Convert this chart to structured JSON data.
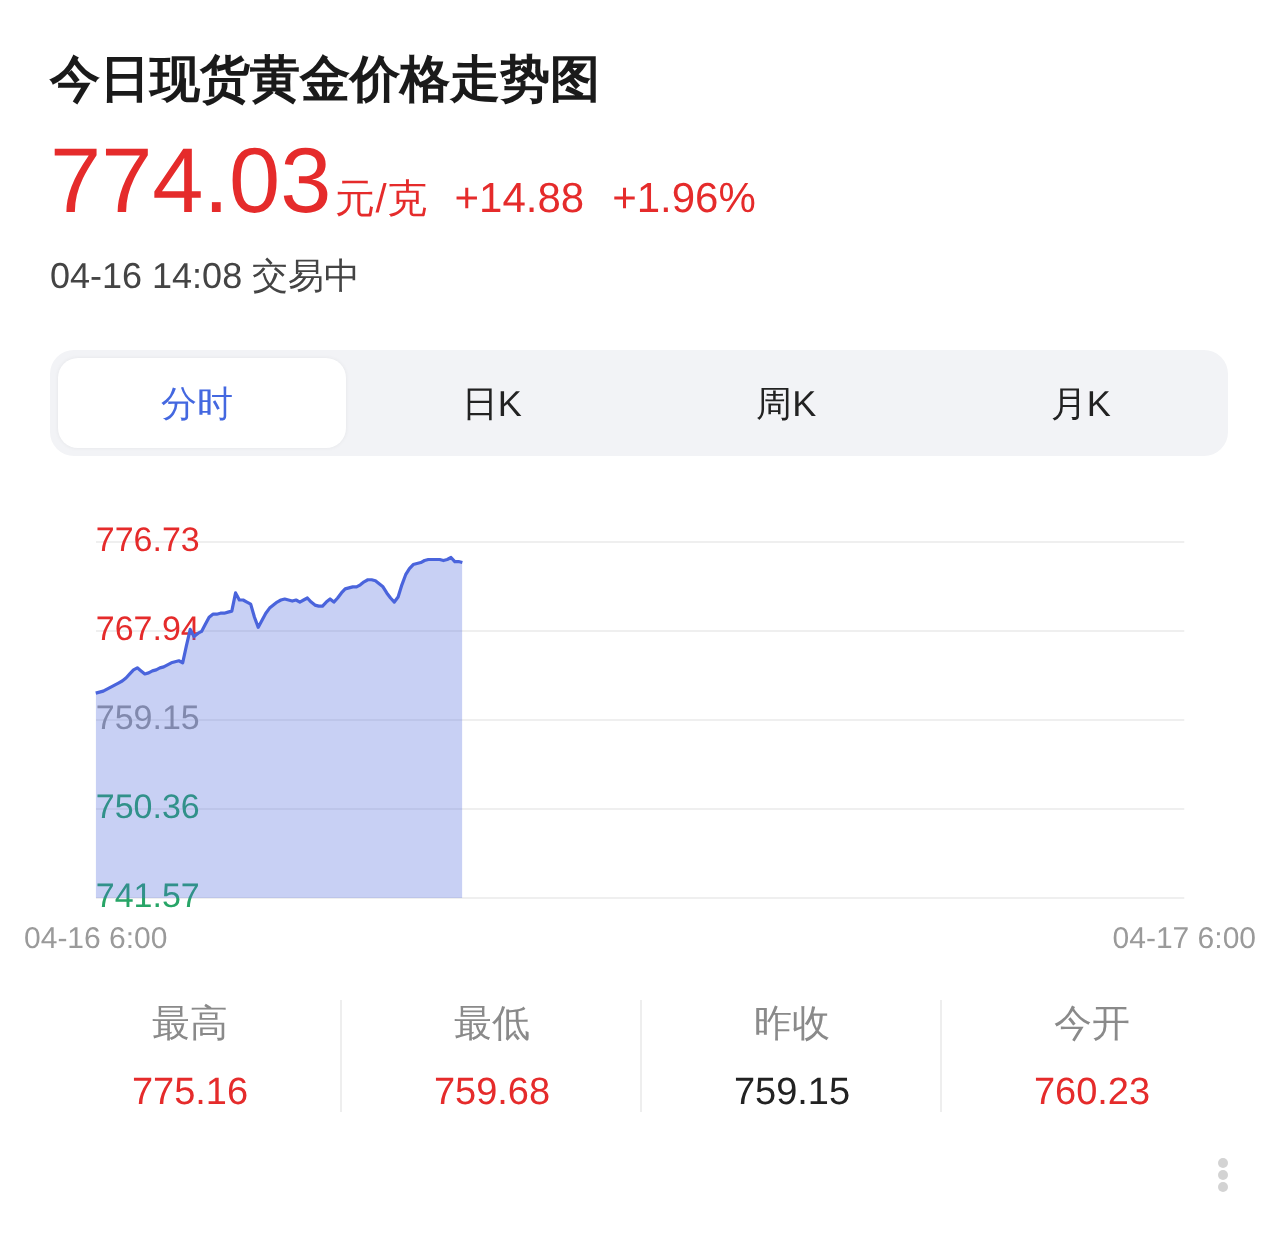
{
  "chart_data": {
    "type": "area",
    "title": "今日现货黄金价格走势图",
    "subtitle": "774.03元/克 +14.88 +1.96%",
    "annotations": [
      "04-16 14:08 交易中",
      "分时",
      "日K",
      "周K",
      "月K",
      "最高",
      "775.16",
      "最低",
      "759.68",
      "昨收",
      "759.15",
      "今开",
      "760.23"
    ],
    "categories": [
      "04-16 6:00",
      null,
      null,
      null,
      null,
      null,
      null,
      null,
      null,
      null,
      null,
      null,
      null,
      null,
      null,
      null,
      null,
      null,
      null,
      null,
      null,
      null,
      null,
      null,
      null,
      null,
      null,
      null,
      null,
      null,
      null,
      null,
      null,
      null,
      null,
      null,
      null,
      null,
      null,
      null,
      null,
      null,
      null,
      null,
      null,
      null,
      null,
      null,
      null,
      null,
      null,
      null,
      null,
      null,
      null,
      null,
      null,
      null,
      null,
      null,
      null,
      null,
      null,
      null,
      null,
      null,
      null,
      null,
      null,
      null,
      null,
      null,
      null,
      null,
      null,
      null,
      null,
      null,
      null,
      null,
      null,
      null,
      null,
      null,
      null,
      null,
      null,
      null,
      null,
      null,
      null,
      null,
      null,
      null,
      null,
      null,
      null,
      null,
      null,
      null,
      null,
      null,
      null,
      null,
      null,
      null,
      null,
      null,
      null,
      null,
      null,
      null,
      null,
      null,
      null,
      null,
      null,
      null,
      null,
      null,
      null,
      null,
      null,
      null,
      null,
      null,
      null,
      null,
      null,
      null,
      null,
      null,
      null,
      null,
      null,
      null,
      null,
      null,
      null,
      null,
      null,
      null,
      null,
      null,
      null,
      null,
      null,
      null,
      null,
      null,
      null,
      null,
      null,
      null,
      null,
      null,
      null,
      null,
      null,
      null,
      null,
      null,
      null,
      null,
      null,
      null,
      null,
      null,
      null,
      null,
      null,
      null,
      null,
      null,
      null,
      null,
      null,
      null,
      null,
      null,
      null,
      null,
      null,
      null,
      null,
      null,
      null,
      null,
      null,
      null,
      null,
      null,
      null,
      null,
      null,
      null,
      null,
      null,
      null,
      null,
      null,
      null,
      null,
      null,
      null,
      null,
      null,
      null,
      null,
      null,
      null,
      null,
      null,
      null,
      null,
      null,
      null,
      null,
      null,
      null,
      null,
      null,
      null,
      null,
      null,
      null,
      null,
      null,
      null,
      null,
      null,
      null,
      null,
      null,
      null,
      null,
      null,
      null,
      null,
      null,
      null,
      null,
      null,
      null,
      null,
      null,
      null,
      null,
      null,
      null,
      null,
      null,
      null,
      null,
      null,
      null,
      null,
      null,
      null,
      null,
      null,
      null,
      null,
      null,
      null,
      null,
      null,
      null,
      null,
      null,
      null,
      null,
      null,
      null,
      null,
      null,
      null,
      null,
      null,
      null,
      null,
      null,
      null,
      null,
      null,
      null,
      null,
      null,
      "04-17 6:00"
    ],
    "series": [
      {
        "color": "#4a64dc",
        "values": [
          761.8,
          761.9,
          762.0,
          762.2,
          762.4,
          762.6,
          762.8,
          763.0,
          763.3,
          763.7,
          764.1,
          764.3,
          764.0,
          763.7,
          763.8,
          764.0,
          764.1,
          764.3,
          764.4,
          764.6,
          764.8,
          764.9,
          765.0,
          764.8,
          766.5,
          768.1,
          767.4,
          767.7,
          767.9,
          768.6,
          769.3,
          769.6,
          769.6,
          769.7,
          769.7,
          769.8,
          769.9,
          771.7,
          771.0,
          771.0,
          770.8,
          770.6,
          769.3,
          768.3,
          769.0,
          769.7,
          770.2,
          770.5,
          770.8,
          771.0,
          771.1,
          771.0,
          770.9,
          771.0,
          770.8,
          771.0,
          771.2,
          770.8,
          770.5,
          770.4,
          770.4,
          770.8,
          771.1,
          770.8,
          771.2,
          771.7,
          772.1,
          772.2,
          772.3,
          772.3,
          772.5,
          772.8,
          773.0,
          773.0,
          772.9,
          772.6,
          772.3,
          771.7,
          771.2,
          770.8,
          771.3,
          772.5,
          773.5,
          774.1,
          774.5,
          774.6,
          774.7,
          774.9,
          775.0,
          775.0,
          775.0,
          775.0,
          774.9,
          775.0,
          775.2,
          774.8,
          774.8,
          774.7,
          null,
          null,
          null,
          null,
          null,
          null,
          null,
          null,
          null,
          null,
          null,
          null,
          null,
          null,
          null,
          null,
          null,
          null,
          null,
          null,
          null,
          null,
          null,
          null,
          null,
          null,
          null,
          null,
          null,
          null,
          null,
          null,
          null,
          null,
          null,
          null,
          null,
          null,
          null,
          null,
          null,
          null,
          null,
          null,
          null,
          null,
          null,
          null,
          null,
          null,
          null,
          null,
          null,
          null,
          null,
          null,
          null,
          null,
          null,
          null,
          null,
          null,
          null,
          null,
          null,
          null,
          null,
          null,
          null,
          null,
          null,
          null,
          null,
          null,
          null,
          null,
          null,
          null,
          null,
          null,
          null,
          null,
          null,
          null,
          null,
          null,
          null,
          null,
          null,
          null,
          null,
          null,
          null,
          null,
          null,
          null,
          null,
          null,
          null,
          null,
          null,
          null,
          null,
          null,
          null,
          null,
          null,
          null,
          null,
          null,
          null,
          null,
          null,
          null,
          null,
          null,
          null,
          null,
          null,
          null,
          null,
          null,
          null,
          null,
          null,
          null,
          null,
          null,
          null,
          null,
          null,
          null,
          null,
          null,
          null,
          null,
          null,
          null,
          null,
          null,
          null,
          null,
          null,
          null,
          null,
          null,
          null,
          null,
          null,
          null,
          null,
          null,
          null,
          null,
          null,
          null,
          null,
          null,
          null,
          null,
          null,
          null,
          null,
          null,
          null,
          null,
          null,
          null,
          null,
          null,
          null,
          null,
          null,
          null,
          null,
          null,
          null,
          null,
          null,
          null,
          null,
          null,
          null,
          null,
          null,
          null,
          null,
          null,
          null,
          null,
          null
        ]
      }
    ],
    "ylim": [
      741.57,
      776.73
    ],
    "yticks": [
      741.57,
      750.36,
      759.15,
      767.94,
      776.73
    ],
    "grid": "y"
  }
}
